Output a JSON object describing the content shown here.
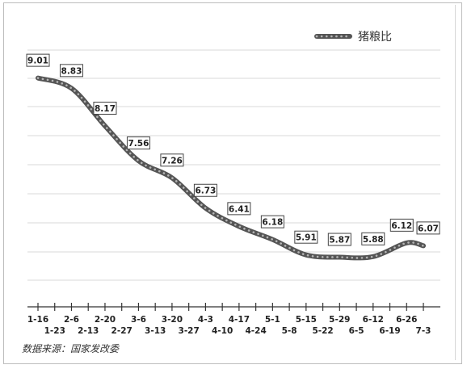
{
  "chart_data": {
    "type": "line",
    "series": [
      {
        "name": "猪粮比",
        "values": [
          9.01,
          8.83,
          8.17,
          7.56,
          7.26,
          6.73,
          6.41,
          6.18,
          5.91,
          5.87,
          5.88,
          6.12,
          6.07
        ],
        "value_labels": [
          "9.01",
          "8.83",
          "8.17",
          "7.56",
          "7.26",
          "6.73",
          "6.41",
          "6.18",
          "5.91",
          "5.87",
          "5.88",
          "6.12",
          "6.07"
        ]
      }
    ],
    "x_labels": [
      "1-16",
      "1-23",
      "2-6",
      "2-13",
      "2-20",
      "2-27",
      "3-6",
      "3-13",
      "3-20",
      "3-27",
      "4-3",
      "4-10",
      "4-17",
      "4-24",
      "5-1",
      "5-8",
      "5-15",
      "5-22",
      "5-29",
      "6-5",
      "6-12",
      "6-19",
      "6-26",
      "7-3"
    ],
    "label_points": [
      0,
      2,
      4,
      6,
      8,
      10,
      12,
      14,
      16,
      18,
      20,
      22,
      23
    ],
    "ylim": [
      5.0,
      9.5
    ],
    "grid": true,
    "legend_position": "top-right",
    "colors": {
      "series": "#555555",
      "grid": "#d9d9d9",
      "label_border": "#444444"
    }
  },
  "source_note": "数据来源：国家发改委"
}
